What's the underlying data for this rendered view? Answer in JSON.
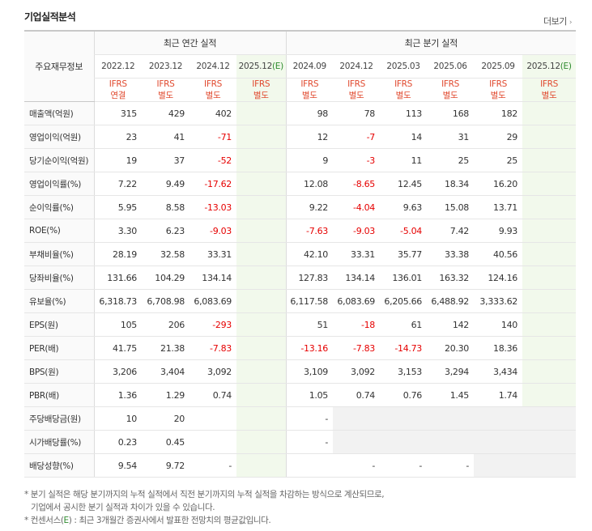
{
  "header": {
    "title": "기업실적분석",
    "more_label": "더보기",
    "more_icon": "chevron-right-icon"
  },
  "table": {
    "label_header": "주요재무정보",
    "group_annual": "최근 연간 실적",
    "group_quarter": "최근 분기 실적",
    "periods": [
      "2022.12",
      "2023.12",
      "2024.12",
      "2025.12(E)",
      "2024.09",
      "2024.12",
      "2025.03",
      "2025.06",
      "2025.09",
      "2025.12(E)"
    ],
    "ifrs": [
      "IFRS",
      "IFRS",
      "IFRS",
      "IFRS",
      "IFRS",
      "IFRS",
      "IFRS",
      "IFRS",
      "IFRS",
      "IFRS"
    ],
    "basis": [
      "연결",
      "별도",
      "별도",
      "별도",
      "별도",
      "별도",
      "별도",
      "별도",
      "별도",
      "별도"
    ],
    "rows": [
      {
        "label": "매출액(억원)",
        "values": [
          "315",
          "429",
          "402",
          "",
          "98",
          "78",
          "113",
          "168",
          "182",
          ""
        ]
      },
      {
        "label": "영업이익(억원)",
        "values": [
          "23",
          "41",
          "-71",
          "",
          "12",
          "-7",
          "14",
          "31",
          "29",
          ""
        ]
      },
      {
        "label": "당기순이익(억원)",
        "values": [
          "19",
          "37",
          "-52",
          "",
          "9",
          "-3",
          "11",
          "25",
          "25",
          ""
        ]
      },
      {
        "label": "영업이익률(%)",
        "values": [
          "7.22",
          "9.49",
          "-17.62",
          "",
          "12.08",
          "-8.65",
          "12.45",
          "18.34",
          "16.20",
          ""
        ]
      },
      {
        "label": "순이익률(%)",
        "values": [
          "5.95",
          "8.58",
          "-13.03",
          "",
          "9.22",
          "-4.04",
          "9.63",
          "15.08",
          "13.71",
          ""
        ]
      },
      {
        "label": "ROE(%)",
        "values": [
          "3.30",
          "6.23",
          "-9.03",
          "",
          "-7.63",
          "-9.03",
          "-5.04",
          "7.42",
          "9.93",
          ""
        ]
      },
      {
        "label": "부채비율(%)",
        "values": [
          "28.19",
          "32.58",
          "33.31",
          "",
          "42.10",
          "33.31",
          "35.77",
          "33.38",
          "40.56",
          ""
        ]
      },
      {
        "label": "당좌비율(%)",
        "values": [
          "131.66",
          "104.29",
          "134.14",
          "",
          "127.83",
          "134.14",
          "136.01",
          "163.32",
          "124.16",
          ""
        ]
      },
      {
        "label": "유보율(%)",
        "values": [
          "6,318.73",
          "6,708.98",
          "6,083.69",
          "",
          "6,117.58",
          "6,083.69",
          "6,205.66",
          "6,488.92",
          "3,333.62",
          ""
        ]
      },
      {
        "label": "EPS(원)",
        "values": [
          "105",
          "206",
          "-293",
          "",
          "51",
          "-18",
          "61",
          "142",
          "140",
          ""
        ]
      },
      {
        "label": "PER(배)",
        "values": [
          "41.75",
          "21.38",
          "-7.83",
          "",
          "-13.16",
          "-7.83",
          "-14.73",
          "20.30",
          "18.36",
          ""
        ]
      },
      {
        "label": "BPS(원)",
        "values": [
          "3,206",
          "3,404",
          "3,092",
          "",
          "3,109",
          "3,092",
          "3,153",
          "3,294",
          "3,434",
          ""
        ]
      },
      {
        "label": "PBR(배)",
        "values": [
          "1.36",
          "1.29",
          "0.74",
          "",
          "1.05",
          "0.74",
          "0.76",
          "1.45",
          "1.74",
          ""
        ]
      },
      {
        "label": "주당배당금(원)",
        "values": [
          "10",
          "20",
          "",
          "",
          "-",
          "",
          "",
          "",
          "",
          ""
        ]
      },
      {
        "label": "시가배당률(%)",
        "values": [
          "0.23",
          "0.45",
          "",
          "",
          "-",
          "",
          "",
          "",
          "",
          ""
        ]
      },
      {
        "label": "배당성향(%)",
        "values": [
          "9.54",
          "9.72",
          "-",
          "",
          "",
          "-",
          "-",
          "-",
          "",
          ""
        ]
      }
    ]
  },
  "footnotes": {
    "line1": "* 분기 실적은 해당 분기까지의 누적 실적에서 직전 분기까지의 누적 실적을 차감하는 방식으로 계산되므로,",
    "line2": "기업에서 공시한 분기 실적과 차이가 있을 수 있습니다.",
    "line3_prefix": "* 컨센서스(",
    "line3_e": "E",
    "line3_suffix": ") : 최근 3개월간 증권사에서 발표한 전망치의 평균값입니다."
  },
  "colors": {
    "negative": "#e60000",
    "ifrs": "#e0492e",
    "estimate_bg": "#f2f9ec",
    "estimate_mark": "#2e8b2e"
  }
}
